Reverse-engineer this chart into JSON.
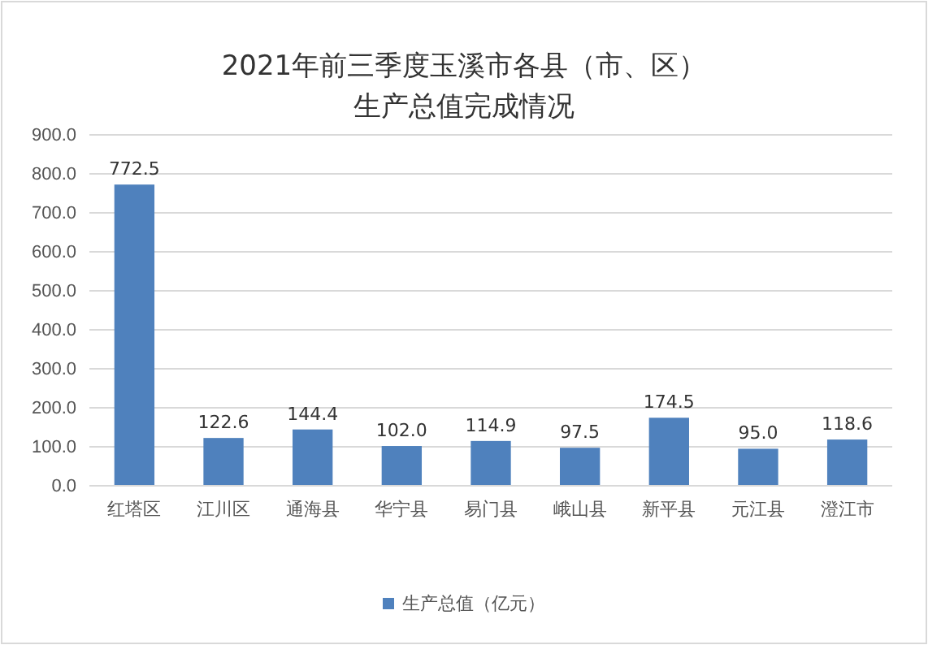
{
  "chart_data": {
    "type": "bar",
    "title": "2021年前三季度玉溪市各县（市、区）",
    "subtitle": "生产总值完成情况",
    "categories": [
      "红塔区",
      "江川区",
      "通海县",
      "华宁县",
      "易门县",
      "峨山县",
      "新平县",
      "元江县",
      "澄江市"
    ],
    "series": [
      {
        "name": "生产总值（亿元）",
        "color": "#4f81bd",
        "values": [
          772.5,
          122.6,
          144.4,
          102.0,
          114.9,
          97.5,
          174.5,
          95.0,
          118.6
        ],
        "value_labels": [
          "772.5",
          "122.6",
          "144.4",
          "102.0",
          "114.9",
          "97.5",
          "174.5",
          "95.0",
          "118.6"
        ]
      }
    ],
    "ylim": [
      0,
      900
    ],
    "yticks": [
      {
        "value": 0,
        "label": "0.0"
      },
      {
        "value": 100,
        "label": "100.0"
      },
      {
        "value": 200,
        "label": "200.0"
      },
      {
        "value": 300,
        "label": "300.0"
      },
      {
        "value": 400,
        "label": "400.0"
      },
      {
        "value": 500,
        "label": "500.0"
      },
      {
        "value": 600,
        "label": "600.0"
      },
      {
        "value": 700,
        "label": "700.0"
      },
      {
        "value": 800,
        "label": "800.0"
      },
      {
        "value": 900,
        "label": "900.0"
      }
    ],
    "grid": "y",
    "legend": "bottom"
  }
}
